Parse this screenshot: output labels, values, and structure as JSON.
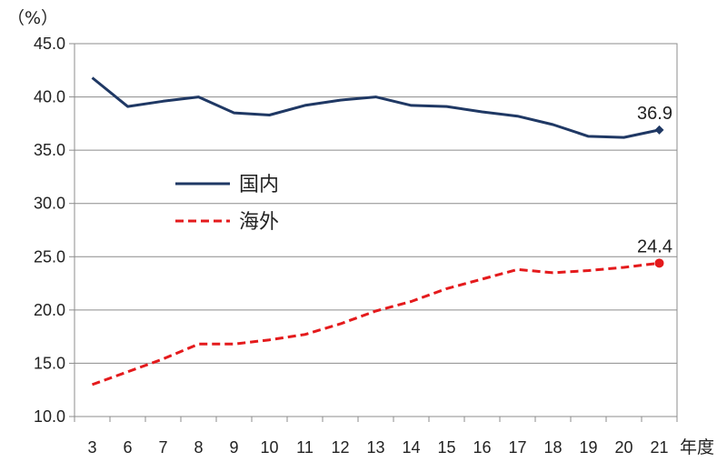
{
  "chart_data": {
    "type": "line",
    "y_unit_label": "（%）",
    "x_unit_label": "年度",
    "categories": [
      "3",
      "6",
      "7",
      "8",
      "9",
      "10",
      "11",
      "12",
      "13",
      "14",
      "15",
      "16",
      "17",
      "18",
      "19",
      "20",
      "21"
    ],
    "ylim": [
      10.0,
      45.0
    ],
    "y_ticks": [
      "10.0",
      "15.0",
      "20.0",
      "25.0",
      "30.0",
      "35.0",
      "40.0",
      "45.0"
    ],
    "grid": true,
    "legend_position": "left-center",
    "series": [
      {
        "name": "国内",
        "color": "#1f3864",
        "dash": "solid",
        "values": [
          41.8,
          39.1,
          39.6,
          40.0,
          38.5,
          38.3,
          39.2,
          39.7,
          40.0,
          39.2,
          39.1,
          38.6,
          38.2,
          37.4,
          36.3,
          36.2,
          36.9
        ],
        "end_label": "36.9",
        "end_marker": "diamond"
      },
      {
        "name": "海外",
        "color": "#e41a1c",
        "dash": "dashed",
        "values": [
          13.0,
          14.2,
          15.4,
          16.8,
          16.8,
          17.2,
          17.7,
          18.7,
          19.9,
          20.8,
          22.0,
          22.9,
          23.8,
          23.5,
          23.7,
          24.0,
          24.4
        ],
        "end_label": "24.4",
        "end_marker": "circle"
      }
    ]
  }
}
